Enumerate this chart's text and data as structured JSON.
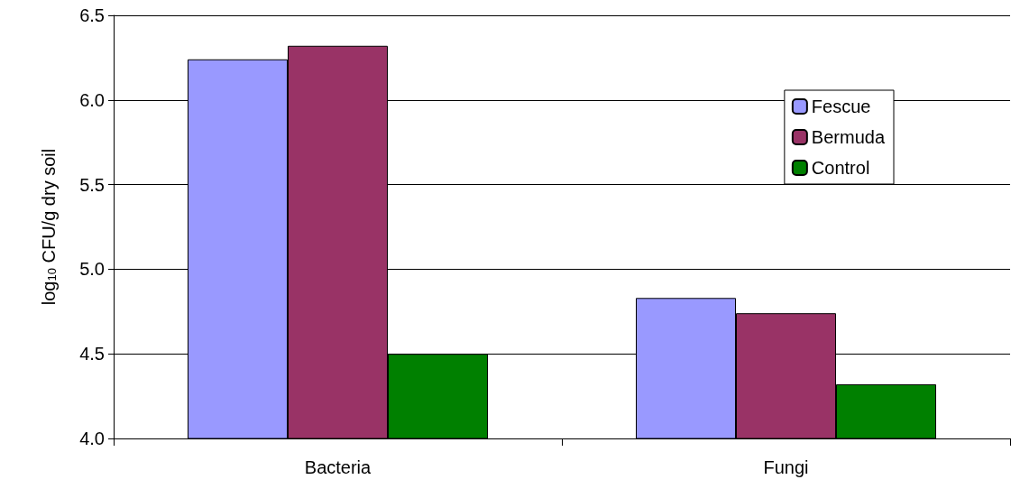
{
  "chart_data": {
    "type": "bar",
    "ylabel": "log$_{10}$ CFU/g dry soil",
    "categories": [
      "Bacteria",
      "Fungi"
    ],
    "series": [
      {
        "name": "Fescue",
        "color": "#9999ff",
        "values": [
          6.24,
          4.83
        ]
      },
      {
        "name": "Bermuda",
        "color": "#993366",
        "values": [
          6.32,
          4.74
        ]
      },
      {
        "name": "Control",
        "color": "#008000",
        "values": [
          4.5,
          4.32
        ]
      }
    ],
    "ylim": [
      4.0,
      6.5
    ],
    "yticks": [
      {
        "value": 4.0,
        "label": "4.0"
      },
      {
        "value": 4.5,
        "label": "4.5"
      },
      {
        "value": 5.0,
        "label": "5.0"
      },
      {
        "value": 5.5,
        "label": "5.5"
      },
      {
        "value": 6.0,
        "label": "6.0"
      },
      {
        "value": 6.5,
        "label": "6.5"
      }
    ],
    "grid": "y",
    "legend": "top right"
  }
}
